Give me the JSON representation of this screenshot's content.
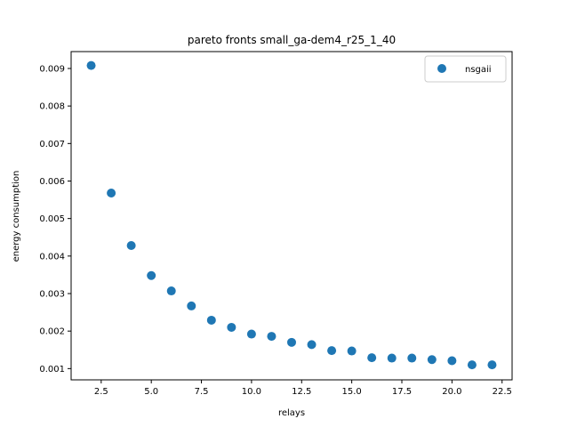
{
  "chart_data": {
    "type": "scatter",
    "title": "pareto fronts small_ga-dem4_r25_1_40",
    "xlabel": "relays",
    "ylabel": "energy consumption",
    "xlim": [
      1.0,
      23.0
    ],
    "ylim": [
      0.0007,
      0.00945
    ],
    "xticks": [
      2.5,
      5.0,
      7.5,
      10.0,
      12.5,
      15.0,
      17.5,
      20.0,
      22.5
    ],
    "xtick_labels": [
      "2.5",
      "5.0",
      "7.5",
      "10.0",
      "12.5",
      "15.0",
      "17.5",
      "20.0",
      "22.5"
    ],
    "yticks": [
      0.001,
      0.002,
      0.003,
      0.004,
      0.005,
      0.006,
      0.007,
      0.008,
      0.009
    ],
    "ytick_labels": [
      "0.001",
      "0.002",
      "0.003",
      "0.004",
      "0.005",
      "0.006",
      "0.007",
      "0.008",
      "0.009"
    ],
    "grid": false,
    "legend_position": "top-right",
    "series": [
      {
        "name": "nsgaii",
        "color": "#1f77b4",
        "x": [
          2,
          3,
          4,
          5,
          6,
          7,
          8,
          9,
          10,
          11,
          12,
          13,
          14,
          15,
          16,
          17,
          18,
          19,
          20,
          21,
          22
        ],
        "y": [
          0.00908,
          0.00568,
          0.00428,
          0.00348,
          0.00307,
          0.00267,
          0.00229,
          0.0021,
          0.00192,
          0.00186,
          0.0017,
          0.00164,
          0.00148,
          0.00147,
          0.00129,
          0.00128,
          0.00128,
          0.00124,
          0.00121,
          0.0011,
          0.0011
        ]
      }
    ]
  }
}
